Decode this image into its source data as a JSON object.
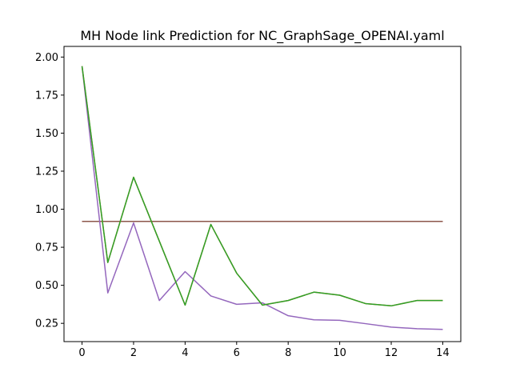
{
  "chart_data": {
    "type": "line",
    "title": "MH Node link Prediction for NC_GraphSage_OPENAI.yaml",
    "xlabel": "",
    "ylabel": "",
    "xlim": [
      -0.7,
      14.7
    ],
    "ylim": [
      0.13,
      2.07
    ],
    "xticks": [
      0,
      2,
      4,
      6,
      8,
      10,
      12,
      14
    ],
    "yticks": [
      0.25,
      0.5,
      0.75,
      1.0,
      1.25,
      1.5,
      1.75,
      2.0
    ],
    "ytick_labels": [
      "0.25",
      "0.50",
      "0.75",
      "1.00",
      "1.25",
      "1.50",
      "1.75",
      "2.00"
    ],
    "grid": false,
    "legend": "none",
    "x": [
      0,
      1,
      2,
      3,
      4,
      5,
      6,
      7,
      8,
      9,
      10,
      11,
      12,
      13,
      14
    ],
    "series": [
      {
        "color": "#d62728",
        "values": [
          0.92,
          0.92,
          0.92,
          0.92,
          0.92,
          0.92,
          0.92,
          0.92,
          0.92,
          0.92,
          0.92,
          0.92,
          0.92,
          0.92,
          0.92
        ]
      },
      {
        "color": "#8c564b",
        "values": [
          0.92,
          0.92,
          0.92,
          0.92,
          0.92,
          0.92,
          0.92,
          0.92,
          0.92,
          0.92,
          0.92,
          0.92,
          0.92,
          0.92,
          0.92
        ]
      },
      {
        "color": "#9467bd",
        "values": [
          1.94,
          0.45,
          0.91,
          0.4,
          0.59,
          0.43,
          0.375,
          0.385,
          0.3,
          0.273,
          0.27,
          0.248,
          0.225,
          0.215,
          0.21
        ]
      },
      {
        "color": "#ff7f0e",
        "values": [
          1.94,
          0.65,
          1.21,
          0.79,
          0.37,
          0.9,
          0.58,
          0.37,
          0.4,
          0.455,
          0.435,
          0.38,
          0.365,
          0.4,
          0.4
        ]
      },
      {
        "color": "#2ca02c",
        "values": [
          1.94,
          0.65,
          1.21,
          0.79,
          0.37,
          0.9,
          0.58,
          0.37,
          0.4,
          0.455,
          0.435,
          0.38,
          0.365,
          0.4,
          0.4
        ]
      }
    ]
  }
}
